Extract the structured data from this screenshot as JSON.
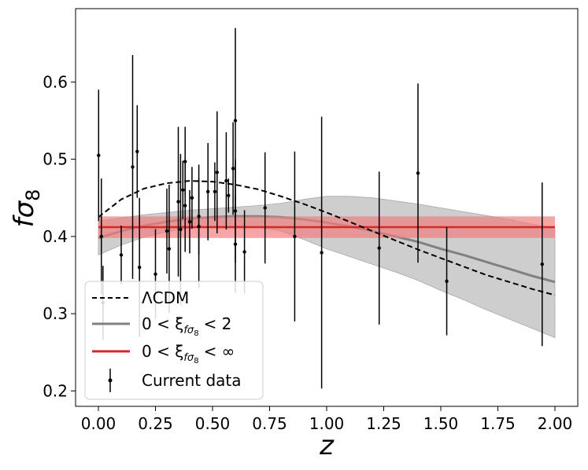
{
  "chart_data": {
    "type": "scatter",
    "xlabel": "z",
    "ylabel": "fσ8",
    "xlim": [
      -0.1,
      2.1
    ],
    "ylim": [
      0.18,
      0.695
    ],
    "xticks": [
      "0.00",
      "0.25",
      "0.50",
      "0.75",
      "1.00",
      "1.25",
      "1.50",
      "1.75",
      "2.00"
    ],
    "yticks": [
      "0.2",
      "0.3",
      "0.4",
      "0.5",
      "0.6"
    ],
    "legend_position": "lower-left",
    "legend": {
      "lcdm": "ΛCDM",
      "gp2": "0 < ξ",
      "gp2_bound": "< 2",
      "gpinf": "0 < ξ",
      "gpinf_bound": "< ∞",
      "sub_main": "fσ",
      "sub_small": "8",
      "data": "Current data"
    },
    "colors": {
      "lcdm": "#000000",
      "gp2_line": "#808080",
      "gp2_band": "#bdbdbd",
      "gpinf_line": "#d62728",
      "gpinf_band": "#f08080",
      "data": "#000000"
    },
    "lcdm_curve": {
      "x": [
        0.0,
        0.1,
        0.2,
        0.3,
        0.4,
        0.5,
        0.6,
        0.7,
        0.8,
        0.9,
        1.0,
        1.1,
        1.2,
        1.3,
        1.4,
        1.5,
        1.6,
        1.7,
        1.8,
        1.9,
        2.0
      ],
      "y": [
        0.425,
        0.448,
        0.462,
        0.469,
        0.472,
        0.471,
        0.467,
        0.461,
        0.452,
        0.442,
        0.431,
        0.419,
        0.407,
        0.395,
        0.383,
        0.372,
        0.361,
        0.35,
        0.341,
        0.332,
        0.324
      ]
    },
    "gp2_mean": {
      "x": [
        0.0,
        0.1,
        0.2,
        0.3,
        0.4,
        0.5,
        0.6,
        0.7,
        0.8,
        0.9,
        1.0,
        1.1,
        1.2,
        1.3,
        1.4,
        1.5,
        1.6,
        1.7,
        1.8,
        1.9,
        2.0
      ],
      "y": [
        0.398,
        0.407,
        0.414,
        0.419,
        0.423,
        0.425,
        0.426,
        0.426,
        0.425,
        0.422,
        0.418,
        0.413,
        0.407,
        0.4,
        0.393,
        0.384,
        0.376,
        0.367,
        0.358,
        0.349,
        0.341
      ]
    },
    "gp2_upper": [
      0.42,
      0.424,
      0.428,
      0.431,
      0.434,
      0.436,
      0.438,
      0.44,
      0.443,
      0.448,
      0.452,
      0.452,
      0.45,
      0.446,
      0.442,
      0.437,
      0.432,
      0.427,
      0.422,
      0.416,
      0.41
    ],
    "gp2_lower": [
      0.376,
      0.389,
      0.399,
      0.406,
      0.411,
      0.414,
      0.414,
      0.412,
      0.407,
      0.396,
      0.384,
      0.374,
      0.364,
      0.354,
      0.343,
      0.33,
      0.318,
      0.305,
      0.293,
      0.281,
      0.269
    ],
    "gpinf": {
      "mean": 0.412,
      "lower": 0.398,
      "upper": 0.426,
      "x": [
        0.0,
        2.0
      ]
    },
    "points": [
      {
        "x": 0.001,
        "y": 0.505,
        "err": 0.085
      },
      {
        "x": 0.013,
        "y": 0.4,
        "err": 0.075
      },
      {
        "x": 0.02,
        "y": 0.314,
        "err": 0.048
      },
      {
        "x": 0.1,
        "y": 0.376,
        "err": 0.038
      },
      {
        "x": 0.15,
        "y": 0.49,
        "err": 0.145
      },
      {
        "x": 0.17,
        "y": 0.51,
        "err": 0.06
      },
      {
        "x": 0.18,
        "y": 0.36,
        "err": 0.09
      },
      {
        "x": 0.25,
        "y": 0.3512,
        "err": 0.0583
      },
      {
        "x": 0.3,
        "y": 0.407,
        "err": 0.055
      },
      {
        "x": 0.31,
        "y": 0.384,
        "err": 0.083
      },
      {
        "x": 0.35,
        "y": 0.445,
        "err": 0.097
      },
      {
        "x": 0.36,
        "y": 0.409,
        "err": 0.098
      },
      {
        "x": 0.37,
        "y": 0.4602,
        "err": 0.0378
      },
      {
        "x": 0.38,
        "y": 0.44,
        "err": 0.06
      },
      {
        "x": 0.38,
        "y": 0.497,
        "err": 0.045
      },
      {
        "x": 0.4,
        "y": 0.419,
        "err": 0.041
      },
      {
        "x": 0.41,
        "y": 0.45,
        "err": 0.04
      },
      {
        "x": 0.44,
        "y": 0.413,
        "err": 0.08
      },
      {
        "x": 0.44,
        "y": 0.426,
        "err": 0.05
      },
      {
        "x": 0.48,
        "y": 0.458,
        "err": 0.063
      },
      {
        "x": 0.51,
        "y": 0.458,
        "err": 0.038
      },
      {
        "x": 0.52,
        "y": 0.483,
        "err": 0.079
      },
      {
        "x": 0.56,
        "y": 0.472,
        "err": 0.063
      },
      {
        "x": 0.57,
        "y": 0.453,
        "err": 0.022
      },
      {
        "x": 0.59,
        "y": 0.488,
        "err": 0.06
      },
      {
        "x": 0.6,
        "y": 0.39,
        "err": 0.063
      },
      {
        "x": 0.6,
        "y": 0.55,
        "err": 0.12
      },
      {
        "x": 0.6,
        "y": 0.433,
        "err": 0.067
      },
      {
        "x": 0.64,
        "y": 0.38,
        "err": 0.054
      },
      {
        "x": 0.73,
        "y": 0.437,
        "err": 0.072
      },
      {
        "x": 0.86,
        "y": 0.4,
        "err": 0.11
      },
      {
        "x": 0.978,
        "y": 0.379,
        "err": 0.176
      },
      {
        "x": 1.23,
        "y": 0.385,
        "err": 0.099
      },
      {
        "x": 1.4,
        "y": 0.482,
        "err": 0.116
      },
      {
        "x": 1.526,
        "y": 0.342,
        "err": 0.07
      },
      {
        "x": 1.944,
        "y": 0.364,
        "err": 0.106
      }
    ]
  }
}
